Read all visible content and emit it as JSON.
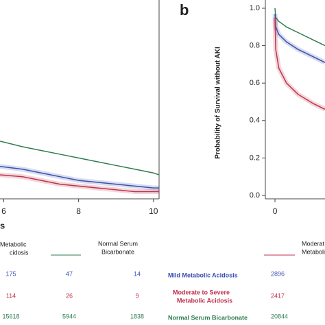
{
  "chart_data": [
    {
      "type": "line",
      "xlabel": "s",
      "xlim": [
        5.9,
        10.15
      ],
      "xticks": [
        6,
        8,
        10
      ],
      "ylim": [
        0,
        1
      ],
      "x": [
        5.9,
        6.5,
        7,
        7.5,
        8,
        8.5,
        9,
        9.5,
        10,
        10.15
      ],
      "series": [
        {
          "color": "#2e7d4f",
          "values": [
            0.29,
            0.26,
            0.24,
            0.22,
            0.2,
            0.18,
            0.16,
            0.14,
            0.12,
            0.11
          ]
        },
        {
          "color": "#3a4fb0",
          "values": [
            0.155,
            0.14,
            0.12,
            0.1,
            0.08,
            0.07,
            0.06,
            0.05,
            0.04,
            0.04
          ]
        },
        {
          "color": "#c0304a",
          "values": [
            0.11,
            0.1,
            0.08,
            0.06,
            0.05,
            0.04,
            0.03,
            0.02,
            0.02,
            0.02
          ]
        }
      ]
    },
    {
      "type": "line",
      "panel": "b",
      "ylabel": "Probability of Survival without AKI",
      "xlim": [
        -0.25,
        1.3
      ],
      "xticks": [
        0
      ],
      "ylim": [
        0,
        1
      ],
      "yticks": [
        {
          "value": 0,
          "label": "0.0"
        },
        {
          "value": 0.2,
          "label": "0.2"
        },
        {
          "value": 0.4,
          "label": "0.4"
        },
        {
          "value": 0.6,
          "label": "0.6"
        },
        {
          "value": 0.8,
          "label": "0.8"
        },
        {
          "value": 1,
          "label": "1.0"
        }
      ],
      "x": [
        0,
        0.02,
        0.1,
        0.3,
        0.6,
        1.0,
        1.3
      ],
      "series": [
        {
          "color": "#2e7d4f",
          "values": [
            1.0,
            0.95,
            0.93,
            0.9,
            0.87,
            0.83,
            0.8
          ]
        },
        {
          "color": "#3a4fb0",
          "values": [
            0.97,
            0.9,
            0.86,
            0.82,
            0.78,
            0.74,
            0.71
          ]
        },
        {
          "color": "#c0304a",
          "values": [
            0.95,
            0.78,
            0.68,
            0.6,
            0.54,
            0.49,
            0.46
          ]
        }
      ]
    }
  ],
  "table": {
    "left_legend": [
      "Metabolic",
      "cidosis",
      "Normal Serum",
      "Bicarbonate"
    ],
    "left_rows": [
      [
        "175",
        "47",
        "14"
      ],
      [
        "114",
        "26",
        "9"
      ],
      [
        "15618",
        "5944",
        "1838"
      ]
    ],
    "right_legend": [
      "Moderat",
      "Metaboli"
    ],
    "right_rows": [
      [
        "Mild Metabolic Acidosis",
        "2896"
      ],
      [
        "Moderate to Severe",
        "Metabolic Acidosis",
        "2417"
      ],
      [
        "Normal Serum Bicarbonate",
        "20844"
      ]
    ]
  }
}
